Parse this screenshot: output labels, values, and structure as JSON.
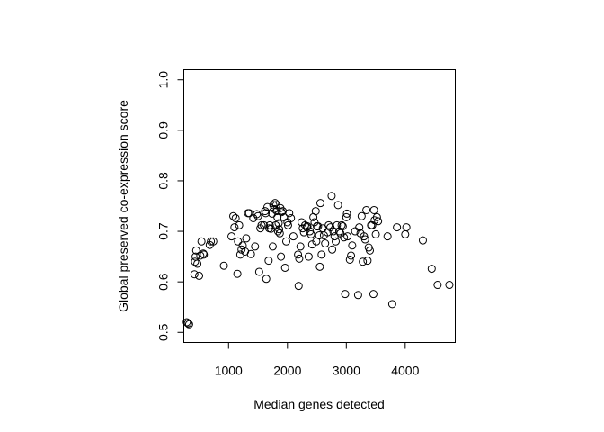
{
  "chart_data": {
    "type": "scatter",
    "title": "",
    "xlabel": "Median genes detected",
    "ylabel": "Global preserved co-expression score",
    "xlim": [
      240,
      4850
    ],
    "ylim": [
      0.48,
      1.02
    ],
    "xticks": [
      1000,
      2000,
      3000,
      4000
    ],
    "xtick_labels": [
      "1000",
      "2000",
      "3000",
      "4000"
    ],
    "yticks": [
      0.5,
      0.6,
      0.7,
      0.8,
      0.9,
      1.0
    ],
    "ytick_labels": [
      "0.5",
      "0.6",
      "0.7",
      "0.8",
      "0.9",
      "1.0"
    ],
    "grid": false,
    "marker": "open-circle",
    "color": "#000000",
    "points": [
      [
        290,
        0.52
      ],
      [
        310,
        0.518
      ],
      [
        330,
        0.516
      ],
      [
        420,
        0.615
      ],
      [
        430,
        0.64
      ],
      [
        440,
        0.65
      ],
      [
        450,
        0.662
      ],
      [
        470,
        0.636
      ],
      [
        500,
        0.612
      ],
      [
        520,
        0.652
      ],
      [
        540,
        0.68
      ],
      [
        570,
        0.656
      ],
      [
        580,
        0.654
      ],
      [
        680,
        0.673
      ],
      [
        700,
        0.68
      ],
      [
        740,
        0.68
      ],
      [
        920,
        0.632
      ],
      [
        1050,
        0.69
      ],
      [
        1080,
        0.73
      ],
      [
        1100,
        0.708
      ],
      [
        1120,
        0.726
      ],
      [
        1150,
        0.616
      ],
      [
        1160,
        0.68
      ],
      [
        1180,
        0.712
      ],
      [
        1200,
        0.654
      ],
      [
        1220,
        0.664
      ],
      [
        1240,
        0.672
      ],
      [
        1280,
        0.66
      ],
      [
        1300,
        0.686
      ],
      [
        1330,
        0.736
      ],
      [
        1350,
        0.736
      ],
      [
        1380,
        0.655
      ],
      [
        1420,
        0.726
      ],
      [
        1450,
        0.67
      ],
      [
        1480,
        0.734
      ],
      [
        1500,
        0.73
      ],
      [
        1520,
        0.62
      ],
      [
        1540,
        0.706
      ],
      [
        1560,
        0.712
      ],
      [
        1600,
        0.712
      ],
      [
        1620,
        0.74
      ],
      [
        1630,
        0.736
      ],
      [
        1640,
        0.606
      ],
      [
        1660,
        0.748
      ],
      [
        1680,
        0.642
      ],
      [
        1690,
        0.706
      ],
      [
        1700,
        0.712
      ],
      [
        1720,
        0.705
      ],
      [
        1740,
        0.735
      ],
      [
        1750,
        0.67
      ],
      [
        1760,
        0.752
      ],
      [
        1780,
        0.744
      ],
      [
        1790,
        0.756
      ],
      [
        1800,
        0.712
      ],
      [
        1810,
        0.752
      ],
      [
        1820,
        0.74
      ],
      [
        1830,
        0.728
      ],
      [
        1840,
        0.7
      ],
      [
        1850,
        0.716
      ],
      [
        1860,
        0.704
      ],
      [
        1870,
        0.696
      ],
      [
        1880,
        0.746
      ],
      [
        1890,
        0.65
      ],
      [
        1900,
        0.738
      ],
      [
        1920,
        0.74
      ],
      [
        1940,
        0.728
      ],
      [
        1960,
        0.628
      ],
      [
        1980,
        0.68
      ],
      [
        2000,
        0.718
      ],
      [
        2010,
        0.712
      ],
      [
        2030,
        0.736
      ],
      [
        2060,
        0.726
      ],
      [
        2100,
        0.69
      ],
      [
        2180,
        0.654
      ],
      [
        2190,
        0.592
      ],
      [
        2200,
        0.646
      ],
      [
        2220,
        0.67
      ],
      [
        2240,
        0.718
      ],
      [
        2260,
        0.706
      ],
      [
        2280,
        0.698
      ],
      [
        2300,
        0.712
      ],
      [
        2330,
        0.708
      ],
      [
        2340,
        0.71
      ],
      [
        2360,
        0.65
      ],
      [
        2380,
        0.7
      ],
      [
        2400,
        0.694
      ],
      [
        2420,
        0.674
      ],
      [
        2440,
        0.728
      ],
      [
        2460,
        0.718
      ],
      [
        2480,
        0.74
      ],
      [
        2490,
        0.68
      ],
      [
        2500,
        0.71
      ],
      [
        2520,
        0.71
      ],
      [
        2540,
        0.692
      ],
      [
        2550,
        0.63
      ],
      [
        2560,
        0.756
      ],
      [
        2580,
        0.654
      ],
      [
        2600,
        0.706
      ],
      [
        2620,
        0.692
      ],
      [
        2640,
        0.676
      ],
      [
        2680,
        0.698
      ],
      [
        2700,
        0.712
      ],
      [
        2730,
        0.708
      ],
      [
        2750,
        0.77
      ],
      [
        2760,
        0.664
      ],
      [
        2780,
        0.7
      ],
      [
        2800,
        0.69
      ],
      [
        2820,
        0.68
      ],
      [
        2840,
        0.712
      ],
      [
        2860,
        0.752
      ],
      [
        2880,
        0.7
      ],
      [
        2900,
        0.696
      ],
      [
        2920,
        0.712
      ],
      [
        2940,
        0.71
      ],
      [
        2960,
        0.688
      ],
      [
        2980,
        0.576
      ],
      [
        3000,
        0.728
      ],
      [
        3010,
        0.735
      ],
      [
        3020,
        0.69
      ],
      [
        3060,
        0.644
      ],
      [
        3080,
        0.652
      ],
      [
        3100,
        0.672
      ],
      [
        3150,
        0.7
      ],
      [
        3200,
        0.574
      ],
      [
        3220,
        0.708
      ],
      [
        3240,
        0.696
      ],
      [
        3260,
        0.73
      ],
      [
        3280,
        0.64
      ],
      [
        3300,
        0.69
      ],
      [
        3320,
        0.684
      ],
      [
        3340,
        0.742
      ],
      [
        3360,
        0.642
      ],
      [
        3380,
        0.668
      ],
      [
        3400,
        0.662
      ],
      [
        3420,
        0.712
      ],
      [
        3440,
        0.712
      ],
      [
        3460,
        0.576
      ],
      [
        3470,
        0.742
      ],
      [
        3480,
        0.722
      ],
      [
        3500,
        0.694
      ],
      [
        3520,
        0.728
      ],
      [
        3540,
        0.72
      ],
      [
        3700,
        0.69
      ],
      [
        3780,
        0.556
      ],
      [
        3860,
        0.708
      ],
      [
        4000,
        0.694
      ],
      [
        4020,
        0.708
      ],
      [
        4300,
        0.682
      ],
      [
        4450,
        0.626
      ],
      [
        4550,
        0.594
      ],
      [
        4750,
        0.594
      ]
    ]
  }
}
